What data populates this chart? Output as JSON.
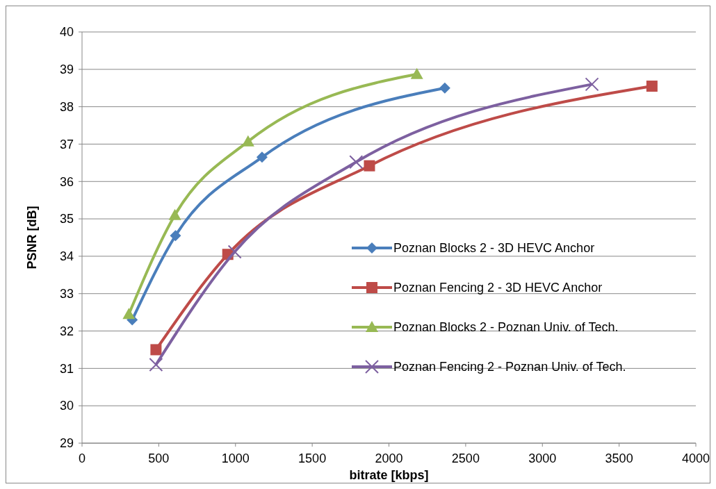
{
  "chart_data": {
    "type": "line",
    "xlabel": "bitrate [kbps]",
    "ylabel": "PSNR [dB]",
    "xlim": [
      0,
      4000
    ],
    "xticks": [
      0,
      500,
      1000,
      1500,
      2000,
      2500,
      3000,
      3500,
      4000
    ],
    "ylim": [
      29,
      40
    ],
    "yticks": [
      29,
      30,
      31,
      32,
      33,
      34,
      35,
      36,
      37,
      38,
      39,
      40
    ],
    "grid": "y",
    "legend": "right",
    "series": [
      {
        "name": "Poznan Blocks 2 - 3D HEVC Anchor",
        "color": "#4a7ebb",
        "marker": "diamond",
        "x": [
          327,
          609,
          1173,
          2364
        ],
        "values": [
          32.3,
          34.55,
          36.65,
          38.5
        ]
      },
      {
        "name": "Poznan Fencing 2 - 3D HEVC Anchor",
        "color": "#be4b48",
        "marker": "square",
        "x": [
          482,
          950,
          1873,
          3714
        ],
        "values": [
          31.5,
          34.05,
          36.42,
          38.55
        ]
      },
      {
        "name": "Poznan Blocks 2 - Poznan Univ. of Tech.",
        "color": "#98b954",
        "marker": "triangle",
        "x": [
          305,
          605,
          1082,
          2182
        ],
        "values": [
          32.45,
          35.1,
          37.07,
          38.87
        ]
      },
      {
        "name": "Poznan Fencing 2 - Poznan Univ. of Tech.",
        "color": "#7d60a0",
        "marker": "cross",
        "x": [
          482,
          995,
          1786,
          3323
        ],
        "values": [
          31.1,
          34.12,
          36.52,
          38.6
        ]
      }
    ]
  }
}
